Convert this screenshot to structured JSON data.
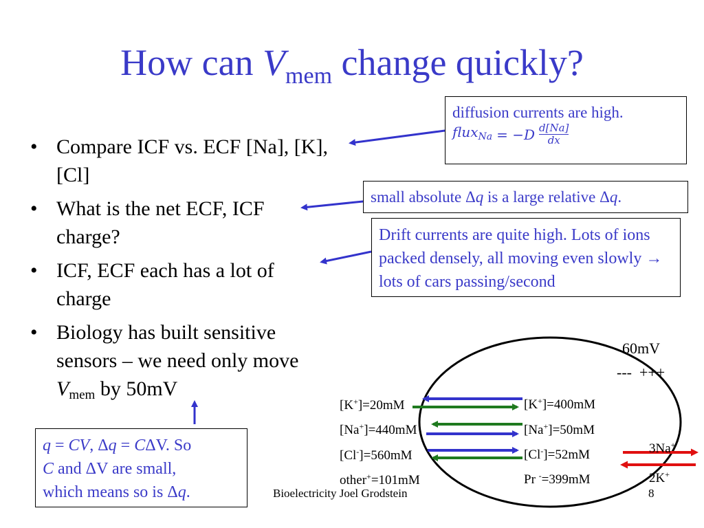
{
  "title": {
    "prefix": "How can ",
    "var": "V",
    "sub": "mem",
    "suffix": " change quickly?"
  },
  "bullets": [
    {
      "text": "Compare ICF vs. ECF [Na], [K], [Cl]"
    },
    {
      "text": "What is the net ECF, ICF charge?"
    },
    {
      "text": "ICF, ECF each has a lot of charge"
    },
    {
      "pre": "Biology has built sensitive sensors – we need only move ",
      "var": "V",
      "sub": "mem",
      "post": " by 50mV"
    }
  ],
  "bullet_symbol": "•",
  "callouts": {
    "diffusion": {
      "line1": "diffusion currents are high.",
      "flux_lhs": "flux",
      "flux_sub": "Na",
      "flux_eq": "= −D",
      "frac_num": "d[Na]",
      "frac_den": "dx"
    },
    "small_q": {
      "pre": "small absolute ",
      "delta1": "Δ",
      "q1": "q",
      "mid": " is a large relative ",
      "delta2": "Δ",
      "q2": "q",
      "end": "."
    },
    "drift": {
      "text": "Drift currents are quite high. Lots of ions packed densely, all moving even slowly → lots of cars passing/second"
    },
    "qcv": {
      "q": "q",
      "eq1": " = ",
      "c": "CV",
      "comma": ",  ",
      "dq": "Δ",
      "q2": "q",
      "eq2": " = ",
      "c2": "C",
      "dv": "ΔV. So",
      "line2_c": "C",
      "line2_rest": " and ΔV are small,",
      "line3_pre": "which means so is Δ",
      "line3_q": "q",
      "line3_end": "."
    }
  },
  "diagram": {
    "voltage": "60mV",
    "charges": "---  +++",
    "ecf_labels": [
      {
        "ion": "[K",
        "sup": "+",
        "conc": "]=20mM"
      },
      {
        "ion": "[Na",
        "sup": "+",
        "conc": "]=440mM"
      },
      {
        "ion": "[Cl",
        "sup": "-",
        "conc": "]=560mM"
      },
      {
        "ion": "other",
        "sup": "+",
        "conc": "=101mM"
      }
    ],
    "icf_labels": [
      {
        "ion": "[K",
        "sup": "+",
        "conc": "]=400mM"
      },
      {
        "ion": "[Na",
        "sup": "+",
        "conc": "]=50mM"
      },
      {
        "ion": "[Cl",
        "sup": "-",
        "conc": "]=52mM"
      },
      {
        "ion": "Pr ",
        "sup": "-",
        "conc": "=399mM"
      }
    ],
    "pump_na": {
      "text": "3Na",
      "sup": "+"
    },
    "pump_k": {
      "text": "2K",
      "sup": "+"
    },
    "colors": {
      "current_blue": "#3333cc",
      "current_green": "#1f7a1f",
      "pump_red": "#e01010",
      "accent": "#3a3ac8"
    }
  },
  "footer": "Bioelectricity Joel Grodstein",
  "page_number": "8"
}
